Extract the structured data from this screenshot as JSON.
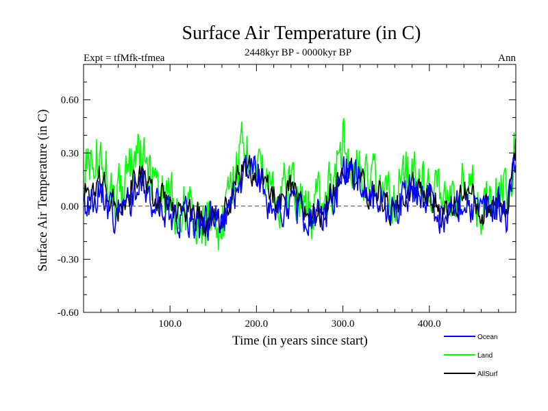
{
  "chart_data": {
    "type": "line",
    "title": "Surface Air Temperature (in C)",
    "subtitle": "2448kyr BP - 0000kyr BP",
    "left_label": "Expt = tfMfk-tfmea",
    "right_label": "Ann",
    "xlabel": "Time (in years since start)",
    "ylabel": "Surface Air Temperature (in C)",
    "xlim": [
      0,
      500
    ],
    "ylim": [
      -0.6,
      0.8
    ],
    "x_ticks": [
      100,
      200,
      300,
      400
    ],
    "x_tick_labels": [
      "100.0",
      "200.0",
      "300.0",
      "400.0"
    ],
    "y_ticks": [
      -0.6,
      -0.3,
      0.0,
      0.3,
      0.6
    ],
    "y_tick_labels": [
      "-0.60",
      "-0.30",
      "0.00",
      "0.30",
      "0.60"
    ],
    "zero_line": true,
    "legend_position": "bottom-right",
    "series": [
      {
        "name": "Land",
        "color": "#00ff00",
        "anchors": [
          [
            0,
            0.15
          ],
          [
            10,
            0.25
          ],
          [
            20,
            0.35
          ],
          [
            30,
            0.1
          ],
          [
            40,
            0.05
          ],
          [
            50,
            0.2
          ],
          [
            60,
            0.3
          ],
          [
            70,
            0.25
          ],
          [
            80,
            0.15
          ],
          [
            90,
            0.1
          ],
          [
            100,
            0.05
          ],
          [
            110,
            0.0
          ],
          [
            120,
            -0.05
          ],
          [
            130,
            -0.05
          ],
          [
            140,
            -0.1
          ],
          [
            150,
            -0.05
          ],
          [
            160,
            -0.15
          ],
          [
            170,
            0.1
          ],
          [
            180,
            0.3
          ],
          [
            190,
            0.35
          ],
          [
            200,
            0.3
          ],
          [
            210,
            0.15
          ],
          [
            220,
            0.1
          ],
          [
            230,
            0.05
          ],
          [
            240,
            0.15
          ],
          [
            250,
            0.05
          ],
          [
            260,
            -0.05
          ],
          [
            270,
            0.0
          ],
          [
            280,
            0.05
          ],
          [
            290,
            0.15
          ],
          [
            300,
            0.35
          ],
          [
            310,
            0.3
          ],
          [
            320,
            0.2
          ],
          [
            330,
            0.1
          ],
          [
            340,
            0.15
          ],
          [
            350,
            0.05
          ],
          [
            360,
            0.0
          ],
          [
            370,
            0.15
          ],
          [
            380,
            0.2
          ],
          [
            390,
            0.15
          ],
          [
            400,
            0.1
          ],
          [
            410,
            0.05
          ],
          [
            420,
            0.0
          ],
          [
            430,
            0.05
          ],
          [
            440,
            0.15
          ],
          [
            450,
            0.1
          ],
          [
            460,
            0.0
          ],
          [
            470,
            0.05
          ],
          [
            480,
            0.1
          ],
          [
            490,
            0.05
          ],
          [
            500,
            0.4
          ]
        ],
        "amplitude": 0.22
      },
      {
        "name": "AllSurf",
        "color": "#000000",
        "anchors": [
          [
            0,
            0.05
          ],
          [
            10,
            0.1
          ],
          [
            20,
            0.15
          ],
          [
            30,
            0.05
          ],
          [
            40,
            0.0
          ],
          [
            50,
            0.05
          ],
          [
            60,
            0.15
          ],
          [
            70,
            0.15
          ],
          [
            80,
            0.05
          ],
          [
            90,
            0.05
          ],
          [
            100,
            0.0
          ],
          [
            110,
            -0.05
          ],
          [
            120,
            -0.05
          ],
          [
            130,
            -0.05
          ],
          [
            140,
            -0.1
          ],
          [
            150,
            -0.05
          ],
          [
            160,
            -0.1
          ],
          [
            170,
            0.05
          ],
          [
            180,
            0.2
          ],
          [
            190,
            0.2
          ],
          [
            200,
            0.2
          ],
          [
            210,
            0.1
          ],
          [
            220,
            0.05
          ],
          [
            230,
            0.0
          ],
          [
            240,
            0.1
          ],
          [
            250,
            0.0
          ],
          [
            260,
            -0.05
          ],
          [
            270,
            -0.05
          ],
          [
            280,
            0.0
          ],
          [
            290,
            0.1
          ],
          [
            300,
            0.25
          ],
          [
            310,
            0.2
          ],
          [
            320,
            0.15
          ],
          [
            330,
            0.05
          ],
          [
            340,
            0.1
          ],
          [
            350,
            0.0
          ],
          [
            360,
            -0.05
          ],
          [
            370,
            0.05
          ],
          [
            380,
            0.1
          ],
          [
            390,
            0.1
          ],
          [
            400,
            0.05
          ],
          [
            410,
            0.0
          ],
          [
            420,
            -0.05
          ],
          [
            430,
            0.0
          ],
          [
            440,
            0.1
          ],
          [
            450,
            0.05
          ],
          [
            460,
            -0.05
          ],
          [
            470,
            0.0
          ],
          [
            480,
            0.05
          ],
          [
            490,
            0.0
          ],
          [
            500,
            0.35
          ]
        ],
        "amplitude": 0.12
      },
      {
        "name": "Ocean",
        "color": "#0000ff",
        "anchors": [
          [
            0,
            0.0
          ],
          [
            10,
            0.05
          ],
          [
            20,
            0.1
          ],
          [
            30,
            0.0
          ],
          [
            40,
            -0.05
          ],
          [
            50,
            0.0
          ],
          [
            60,
            0.1
          ],
          [
            70,
            0.1
          ],
          [
            80,
            0.0
          ],
          [
            90,
            0.0
          ],
          [
            100,
            -0.05
          ],
          [
            110,
            -0.05
          ],
          [
            120,
            -0.05
          ],
          [
            130,
            -0.1
          ],
          [
            140,
            -0.1
          ],
          [
            150,
            -0.05
          ],
          [
            160,
            -0.1
          ],
          [
            170,
            0.0
          ],
          [
            180,
            0.15
          ],
          [
            190,
            0.2
          ],
          [
            200,
            0.2
          ],
          [
            210,
            0.05
          ],
          [
            220,
            0.0
          ],
          [
            230,
            -0.05
          ],
          [
            240,
            0.05
          ],
          [
            250,
            -0.05
          ],
          [
            260,
            -0.05
          ],
          [
            270,
            -0.05
          ],
          [
            280,
            -0.05
          ],
          [
            290,
            0.05
          ],
          [
            300,
            0.2
          ],
          [
            310,
            0.2
          ],
          [
            320,
            0.15
          ],
          [
            330,
            0.05
          ],
          [
            340,
            0.05
          ],
          [
            350,
            0.0
          ],
          [
            360,
            -0.05
          ],
          [
            370,
            0.05
          ],
          [
            380,
            0.1
          ],
          [
            390,
            0.05
          ],
          [
            400,
            0.05
          ],
          [
            410,
            -0.05
          ],
          [
            420,
            -0.05
          ],
          [
            430,
            0.0
          ],
          [
            440,
            0.05
          ],
          [
            450,
            0.0
          ],
          [
            460,
            -0.05
          ],
          [
            470,
            0.0
          ],
          [
            480,
            0.0
          ],
          [
            490,
            -0.05
          ],
          [
            500,
            0.3
          ]
        ],
        "amplitude": 0.15
      }
    ],
    "legend_order": [
      "Ocean",
      "Land",
      "AllSurf"
    ]
  }
}
